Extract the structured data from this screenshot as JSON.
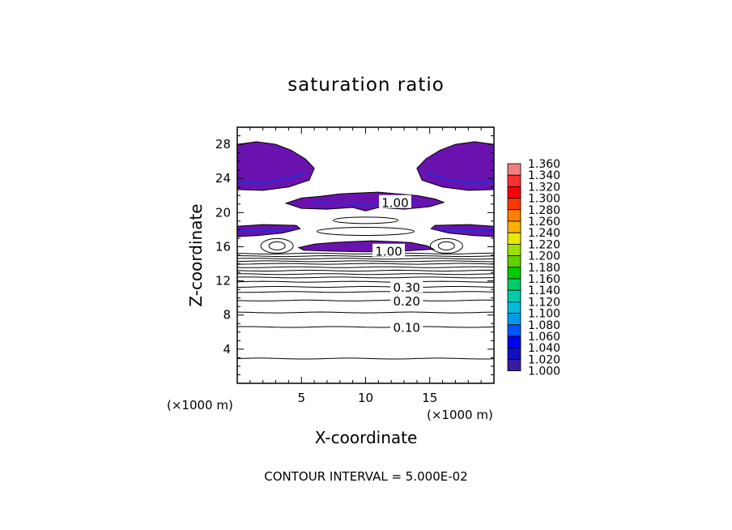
{
  "chart_data": {
    "type": "heatmap",
    "title": "saturation ratio",
    "xlabel": "X-coordinate",
    "ylabel": "Z-coordinate",
    "x_unit_label": "(×1000 m)",
    "z_unit_label": "(×1000 m)",
    "footer": "CONTOUR INTERVAL = 5.000E-02",
    "xlim": [
      0,
      20
    ],
    "ylim": [
      0,
      30
    ],
    "xticks": [
      5,
      10,
      15
    ],
    "yticks": [
      4,
      8,
      12,
      16,
      20,
      24,
      28
    ],
    "colorbar": {
      "labels": [
        "1.360",
        "1.340",
        "1.320",
        "1.300",
        "1.280",
        "1.260",
        "1.240",
        "1.220",
        "1.200",
        "1.180",
        "1.160",
        "1.140",
        "1.120",
        "1.100",
        "1.080",
        "1.060",
        "1.040",
        "1.020",
        "1.000"
      ],
      "colors": [
        "#f08080",
        "#ff3030",
        "#ff0000",
        "#ff3800",
        "#ff8000",
        "#ffb000",
        "#e8e800",
        "#a0e000",
        "#60d000",
        "#00cc00",
        "#00cc66",
        "#00ccaa",
        "#00bbdd",
        "#0099ee",
        "#0055ff",
        "#0000ff",
        "#1010c0",
        "#3a1aa0",
        "#6a12b0"
      ]
    },
    "contour_labels": [
      {
        "text": "1.00",
        "x": 12.3,
        "z": 21.2
      },
      {
        "text": "1.00",
        "x": 11.8,
        "z": 15.5
      },
      {
        "text": "0.30",
        "x": 13.2,
        "z": 11.3
      },
      {
        "text": "0.20",
        "x": 13.2,
        "z": 9.7
      },
      {
        "text": "0.10",
        "x": 13.2,
        "z": 6.6
      }
    ],
    "contour_levels_z": [
      2.9,
      6.6,
      8.3,
      9.7,
      10.7,
      11.3,
      11.9,
      12.4,
      12.8,
      13.2,
      13.6,
      14.0,
      14.3,
      14.6,
      14.9,
      15.2
    ]
  }
}
